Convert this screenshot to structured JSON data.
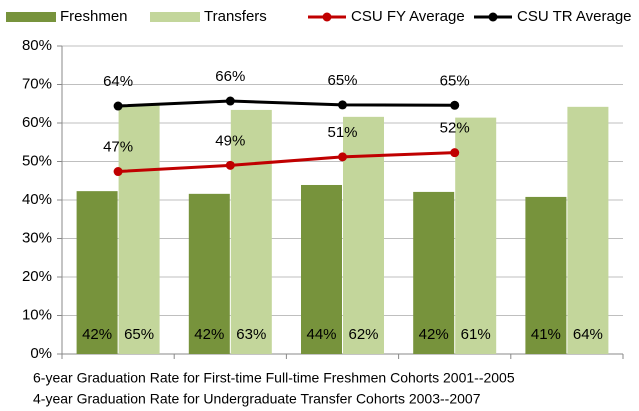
{
  "chart_data": {
    "type": "bar",
    "categories": [
      null,
      null,
      null,
      null,
      null
    ],
    "series": [
      {
        "name": "Freshmen",
        "color": "#77933c",
        "values": [
          42.3,
          41.6,
          43.9,
          42.1,
          40.8
        ],
        "value_labels": [
          "42%",
          "42%",
          "44%",
          "42%",
          "41%"
        ]
      },
      {
        "name": "Transfers",
        "color": "#c3d69b",
        "values": [
          64.7,
          63.4,
          61.6,
          61.4,
          64.2
        ],
        "value_labels": [
          "65%",
          "63%",
          "62%",
          "61%",
          "64%"
        ]
      },
      {
        "name": "CSU FY Average",
        "type": "line",
        "color": "#c00000",
        "values": [
          47.4,
          49.0,
          51.2,
          52.3,
          null
        ],
        "value_labels": [
          "47%",
          "49%",
          "51%",
          "52%",
          null
        ]
      },
      {
        "name": "CSU TR Average",
        "type": "line",
        "color": "#000000",
        "values": [
          64.4,
          65.7,
          64.7,
          64.6,
          null
        ],
        "value_labels": [
          "64%",
          "66%",
          "65%",
          "65%",
          null
        ]
      }
    ],
    "xlabel": [
      "6-year Graduation Rate for First-time Full-time Freshmen Cohorts 2001--2005",
      "4-year Graduation Rate for Undergraduate Transfer Cohorts 2003--2007"
    ],
    "ylim": [
      0,
      80
    ],
    "yticks": [
      {
        "value": 0,
        "label": "0%"
      },
      {
        "value": 10,
        "label": "10%"
      },
      {
        "value": 20,
        "label": "20%"
      },
      {
        "value": 30,
        "label": "30%"
      },
      {
        "value": 40,
        "label": "40%"
      },
      {
        "value": 50,
        "label": "50%"
      },
      {
        "value": 60,
        "label": "60%"
      },
      {
        "value": 70,
        "label": "70%"
      },
      {
        "value": 80,
        "label": "80%"
      }
    ],
    "grid": true,
    "legend": "top"
  }
}
